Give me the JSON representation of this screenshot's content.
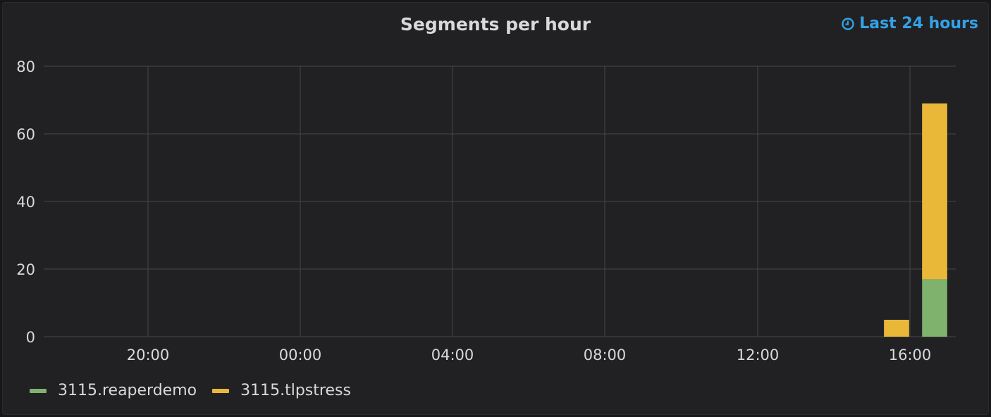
{
  "panel": {
    "title": "Segments per hour",
    "time_range": "Last 24 hours",
    "time_icon": "clock-icon"
  },
  "colors": {
    "background": "#212124",
    "grid": "#464648",
    "text": "#d8d9da",
    "accent": "#33a2e5"
  },
  "chart_data": {
    "type": "bar",
    "stacked": true,
    "title": "Segments per hour",
    "xlabel": "",
    "ylabel": "",
    "ylim": [
      0,
      80
    ],
    "yticks": [
      0,
      20,
      40,
      60,
      80
    ],
    "xticks": [
      "20:00",
      "00:00",
      "04:00",
      "08:00",
      "12:00",
      "16:00"
    ],
    "grid": true,
    "legend_position": "bottom-left",
    "categories": [
      "15:00",
      "16:00"
    ],
    "series": [
      {
        "name": "3115.reaperdemo",
        "color": "#7eb26d",
        "values": [
          0,
          17
        ]
      },
      {
        "name": "3115.tlpstress",
        "color": "#eab839",
        "values": [
          5,
          52
        ]
      }
    ]
  }
}
